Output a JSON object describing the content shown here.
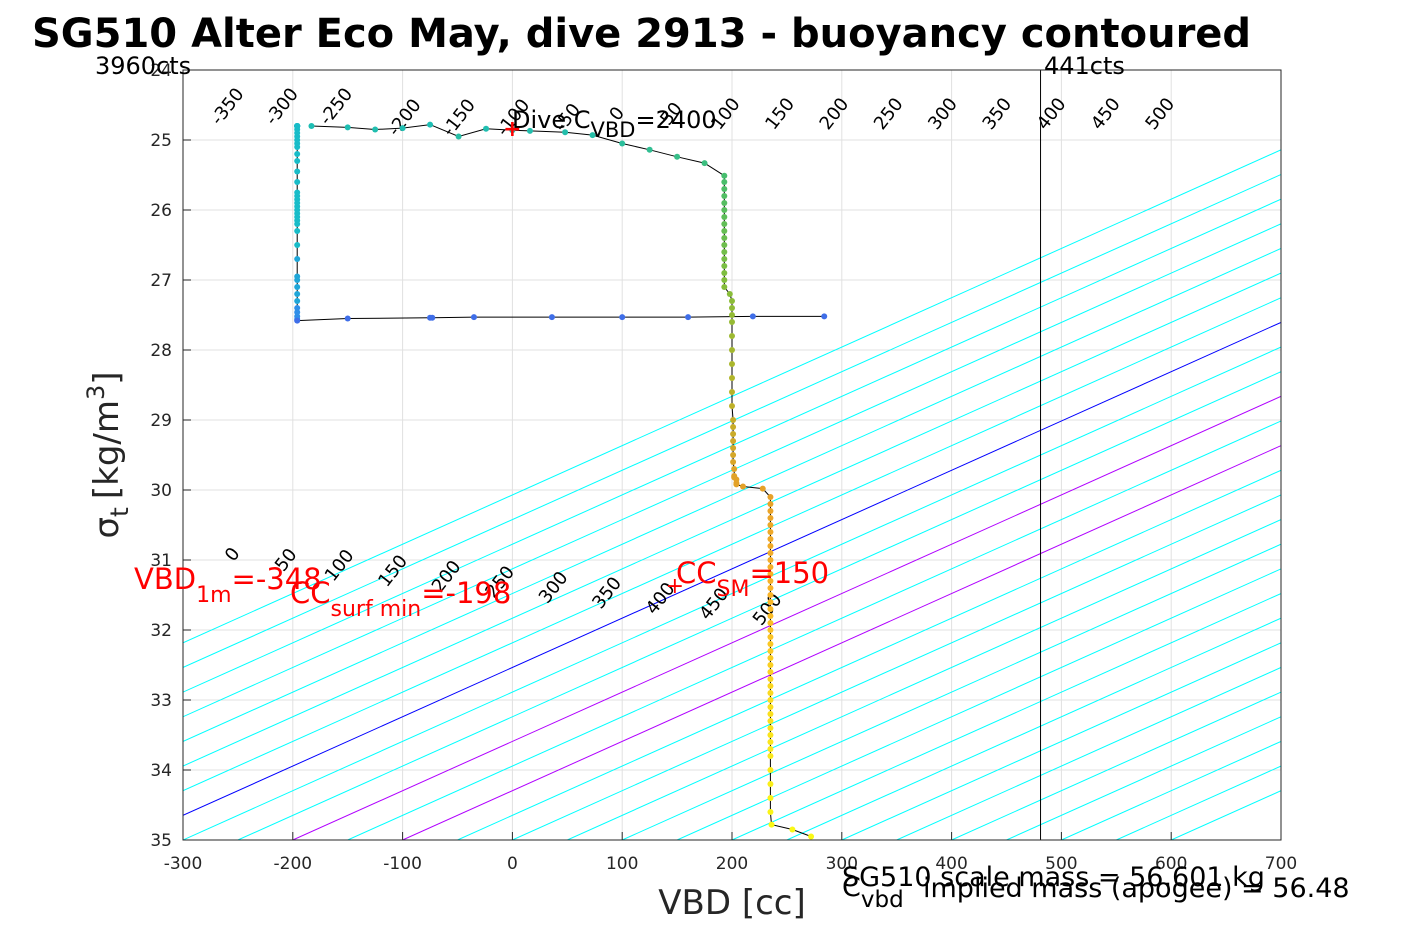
{
  "chart_data": {
    "type": "scatter",
    "title": "SG510 Alter Eco May, dive 2913 - buoyancy contoured",
    "xlabel": "VBD [cc]",
    "ylabel": "σ",
    "ylabel_sub": "t",
    "ylabel_unit_pre": "[kg/m",
    "ylabel_unit_sup": "3",
    "ylabel_unit_post": "]",
    "xlim": [
      -300,
      700
    ],
    "ylim": [
      24,
      35
    ],
    "y_reversed": true,
    "grid": true,
    "x_ticks": [
      -300,
      -200,
      -100,
      0,
      100,
      200,
      300,
      400,
      500,
      600,
      700
    ],
    "y_ticks": [
      24,
      25,
      26,
      27,
      28,
      29,
      30,
      31,
      32,
      33,
      34,
      35
    ],
    "x_tick_labels": [
      "-300",
      "-200",
      "-100",
      "0",
      "100",
      "200",
      "300",
      "400",
      "500",
      "600",
      "700"
    ],
    "y_tick_labels": [
      "24",
      "25",
      "26",
      "27",
      "28",
      "29",
      "30",
      "31",
      "32",
      "33",
      "34",
      "35"
    ],
    "vbd_limit_lines": {
      "min_vbd": 481,
      "label_left": "3960cts",
      "label_right": "441cts"
    },
    "contours": {
      "offsets": [
        -350,
        -300,
        -250,
        -200,
        -150,
        -100,
        -50,
        0,
        50,
        100,
        150,
        200,
        250,
        300,
        350,
        400,
        450,
        500,
        550,
        600,
        650,
        700,
        750,
        800,
        850,
        900,
        950
      ],
      "colors": {
        "default": "#00ffff",
        "zero": "#0000ff",
        "special": "#b000ff"
      },
      "top_labels": [
        "-350",
        "-300",
        "-250",
        "-200",
        "-150",
        "-100",
        "-50",
        "0",
        "50",
        "100",
        "150",
        "200",
        "250",
        "300",
        "350",
        "400",
        "450",
        "500"
      ],
      "bottom_labels": [
        "0",
        "50",
        "100",
        "150",
        "200",
        "250",
        "300",
        "350",
        "400",
        "450",
        "500"
      ]
    },
    "series": [
      {
        "segment": "dive",
        "x": [
          -196,
          -196,
          -196,
          -196,
          -196,
          -196,
          -196,
          -196,
          -196,
          -196,
          -196,
          -196,
          -196,
          -196,
          -196,
          -196,
          -196,
          -196,
          -196,
          -196,
          -196,
          -196,
          -196,
          -196,
          -196,
          -196,
          -196,
          -196,
          -196,
          -196,
          -196,
          -196,
          -196,
          -196,
          -196,
          -196,
          -196,
          -196,
          -196
        ],
        "y": [
          27.56,
          27.52,
          27.46,
          27.4,
          27.3,
          27.2,
          27.1,
          27.0,
          26.95,
          26.7,
          26.5,
          26.3,
          26.2,
          26.15,
          26.1,
          26.05,
          26.0,
          25.95,
          25.9,
          25.85,
          25.8,
          25.75,
          25.6,
          25.45,
          25.3,
          25.2,
          25.1,
          25.05,
          25.0,
          24.95,
          24.9,
          24.85,
          24.8,
          24.8,
          24.8,
          24.8,
          24.8,
          24.8,
          24.8
        ]
      },
      {
        "segment": "climb",
        "x": [
          -183,
          -150,
          -125,
          -100,
          -75,
          -49,
          -24,
          0,
          16,
          48,
          73,
          100,
          125,
          150,
          175,
          193,
          193,
          193,
          193,
          193,
          193,
          193,
          193,
          193,
          193,
          193,
          193,
          193,
          193,
          193,
          193,
          193,
          198,
          200,
          200,
          200,
          200,
          200,
          200,
          200,
          200,
          200,
          200,
          201,
          201,
          201,
          201,
          201,
          201,
          201,
          202,
          202,
          202,
          204,
          204,
          204,
          210,
          228,
          235,
          235,
          235,
          235,
          235,
          235,
          235,
          235,
          235,
          235,
          235,
          235,
          235,
          235,
          235,
          235,
          235,
          235,
          235,
          235,
          235,
          235,
          235,
          235,
          235,
          235,
          235,
          235,
          235,
          235,
          235,
          235,
          235,
          235,
          235,
          235,
          235,
          235,
          235,
          235,
          235,
          235,
          236,
          255,
          272
        ],
        "y": [
          24.8,
          24.82,
          24.85,
          24.83,
          24.78,
          24.95,
          24.84,
          24.86,
          24.87,
          24.89,
          24.93,
          25.05,
          25.14,
          25.24,
          25.33,
          25.51,
          25.6,
          25.7,
          25.8,
          25.9,
          26.0,
          26.1,
          26.2,
          26.3,
          26.4,
          26.5,
          26.6,
          26.7,
          26.8,
          26.9,
          27.0,
          27.1,
          27.2,
          27.3,
          27.4,
          27.5,
          27.6,
          27.8,
          28.0,
          28.2,
          28.4,
          28.6,
          28.8,
          29.0,
          29.1,
          29.2,
          29.3,
          29.4,
          29.5,
          29.6,
          29.7,
          29.8,
          29.82,
          29.85,
          29.9,
          29.92,
          29.95,
          29.98,
          30.1,
          30.2,
          30.3,
          30.4,
          30.5,
          30.6,
          30.7,
          30.8,
          30.9,
          31.0,
          31.1,
          31.2,
          31.3,
          31.4,
          31.5,
          31.6,
          31.7,
          31.8,
          31.9,
          32.0,
          32.1,
          32.2,
          32.3,
          32.4,
          32.5,
          32.6,
          32.7,
          32.8,
          32.9,
          33.0,
          33.1,
          33.2,
          33.3,
          33.4,
          33.5,
          33.6,
          33.7,
          33.8,
          34.0,
          34.2,
          34.4,
          34.6,
          34.78,
          34.85,
          34.95
        ]
      },
      {
        "segment": "traverse",
        "x": [
          -196,
          -150,
          -75,
          -73,
          -35,
          36,
          100,
          160,
          219,
          284
        ],
        "y": [
          27.58,
          27.55,
          27.54,
          27.54,
          27.53,
          27.53,
          27.53,
          27.53,
          27.52,
          27.52
        ]
      }
    ],
    "annotations": {
      "dive_cvbd_pre": "Dive C",
      "dive_cvbd_sub": "VBD",
      "dive_cvbd_post": "=2400",
      "dive_cvbd_marker": {
        "x": 0,
        "y": 24.83
      },
      "vbd1m_pre": "VBD",
      "vbd1m_sub": "1m",
      "vbd1m_post": "=-348",
      "ccsurf_pre": "CC",
      "ccsurf_sub": "surf min",
      "ccsurf_post": "=-198",
      "ccsm_pre": "CC",
      "ccsm_sub": "SM",
      "ccsm_post": "=150",
      "ccsm_marker": {
        "x": 148,
        "y": 31.36
      }
    },
    "footer": {
      "cvbd_pre": "C",
      "cvbd_sub": "vbd",
      "scale_mass": "SG510 scale mass = 56.601 kg",
      "implied_mass": "implied mass (apogee) = 56.48"
    }
  }
}
